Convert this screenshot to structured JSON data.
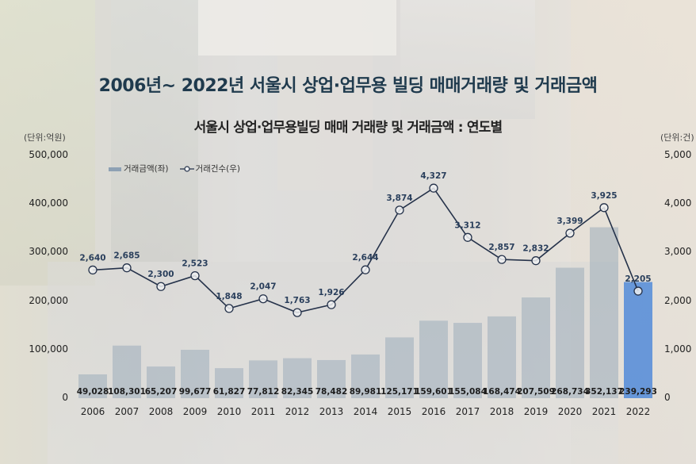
{
  "title": "2006년~ 2022년 서울시 상업·업무용 빌딩 매매거래량 및 거래금액",
  "subtitle": "서울시 상업·업무용빌딩  매매 거래량 및 거래금액 : 연도별",
  "units": {
    "left": "(단위:억원)",
    "right": "(단위:건)"
  },
  "legend": {
    "bar_label": "거래금액(좌)",
    "line_label": "거래건수(우)"
  },
  "colors": {
    "bar": "#8ea1b4",
    "bar_highlight": "#3d7fd9",
    "line": "#25324a",
    "title": "#1f3a4d"
  },
  "chart_data": {
    "type": "bar+line",
    "title": "서울시 상업·업무용빌딩 매매 거래량 및 거래금액 : 연도별",
    "categories": [
      "2006",
      "2007",
      "2008",
      "2009",
      "2010",
      "2011",
      "2012",
      "2013",
      "2014",
      "2015",
      "2016",
      "2017",
      "2018",
      "2019",
      "2020",
      "2021",
      "2022"
    ],
    "series": [
      {
        "name": "거래금액(좌)",
        "type": "bar",
        "axis": "left",
        "unit": "억원",
        "values": [
          49028,
          108301,
          65207,
          99677,
          61827,
          77812,
          82345,
          78482,
          89981,
          125171,
          159601,
          155084,
          168474,
          207509,
          268734,
          352137,
          239293
        ],
        "labels": [
          "49,028",
          "108,301",
          "65,207",
          "99,677",
          "61,827",
          "77,812",
          "82,345",
          "78,482",
          "89,981",
          "125,171",
          "159,601",
          "155,084",
          "168,474",
          "207,509",
          "268,734",
          "352,137",
          "239,293"
        ]
      },
      {
        "name": "거래건수(우)",
        "type": "line",
        "axis": "right",
        "unit": "건",
        "values": [
          2640,
          2685,
          2300,
          2523,
          1848,
          2047,
          1763,
          1926,
          2644,
          3874,
          4327,
          3312,
          2857,
          2832,
          3399,
          3925,
          2205
        ],
        "labels": [
          "2,640",
          "2,685",
          "2,300",
          "2,523",
          "1,848",
          "2,047",
          "1,763",
          "1,926",
          "2,644",
          "3,874",
          "4,327",
          "3,312",
          "2,857",
          "2,832",
          "3,399",
          "3,925",
          "2,205"
        ]
      }
    ],
    "y_left": {
      "label": "(단위:억원)",
      "ylim": [
        0,
        500000
      ],
      "ticks": [
        "500,000",
        "400,000",
        "300,000",
        "200,000",
        "100,000",
        "0"
      ]
    },
    "y_right": {
      "label": "(단위:건)",
      "ylim": [
        0,
        5000
      ],
      "ticks": [
        "5,000",
        "4,000",
        "3,000",
        "2,000",
        "1,000",
        "0"
      ]
    },
    "grid": false,
    "legend_position": "upper-left",
    "highlight_category": "2022"
  }
}
